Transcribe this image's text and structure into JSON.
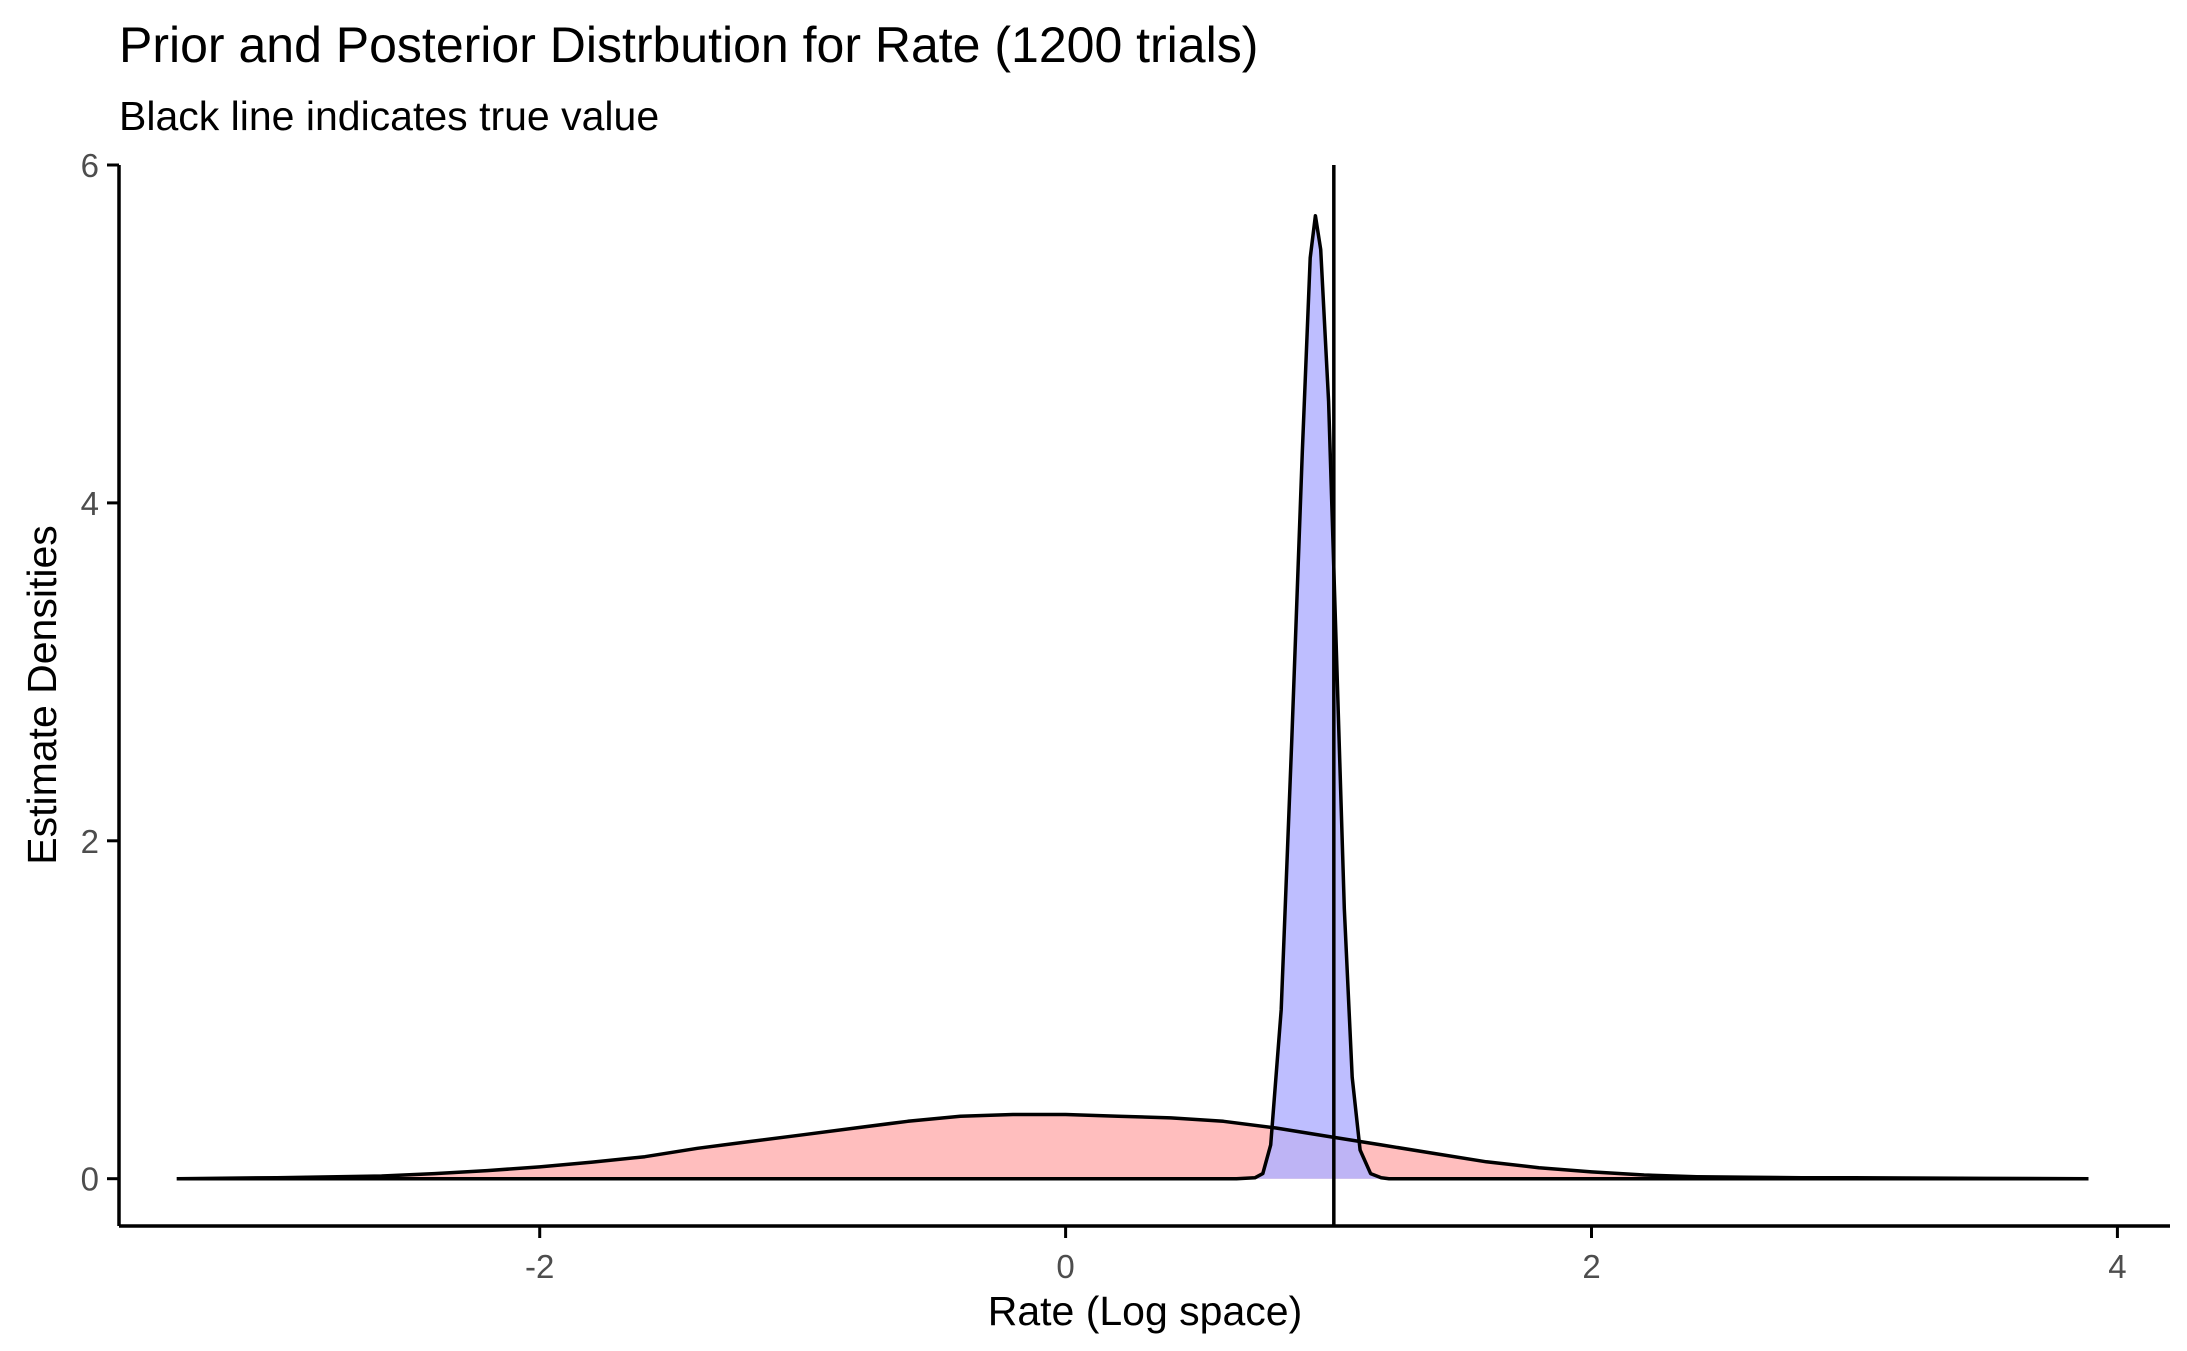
{
  "chart_data": {
    "type": "area",
    "title": "Prior and Posterior Distrbution for Rate (1200 trials)",
    "subtitle": "Black line indicates true value",
    "xlabel": "Rate (Log space)",
    "ylabel": "Estimate Densities",
    "xlim": [
      -3.6,
      4.2
    ],
    "ylim": [
      -0.28,
      6.0
    ],
    "xticks": [
      -2,
      0,
      2,
      4
    ],
    "yticks": [
      0,
      2,
      4,
      6
    ],
    "true_value": 1.02,
    "grid": false,
    "legend": "none",
    "series": [
      {
        "fill": "#ffb3b3",
        "x": [
          -3.38,
          -3.0,
          -2.6,
          -2.4,
          -2.2,
          -2.0,
          -1.8,
          -1.6,
          -1.4,
          -1.2,
          -1.0,
          -0.8,
          -0.6,
          -0.4,
          -0.2,
          0.0,
          0.2,
          0.4,
          0.6,
          0.8,
          1.0,
          1.2,
          1.4,
          1.6,
          1.8,
          2.0,
          2.2,
          2.4,
          2.6,
          2.8,
          3.0,
          3.2,
          3.5,
          3.89
        ],
        "values": [
          0.0,
          0.006,
          0.016,
          0.03,
          0.048,
          0.07,
          0.098,
          0.13,
          0.18,
          0.22,
          0.26,
          0.3,
          0.34,
          0.37,
          0.38,
          0.38,
          0.37,
          0.36,
          0.34,
          0.3,
          0.25,
          0.2,
          0.15,
          0.1,
          0.065,
          0.04,
          0.022,
          0.012,
          0.008,
          0.006,
          0.005,
          0.004,
          0.002,
          0.0
        ]
      },
      {
        "fill": "#b3b3ff",
        "x": [
          -3.38,
          0.65,
          0.72,
          0.75,
          0.78,
          0.82,
          0.86,
          0.9,
          0.93,
          0.95,
          0.97,
          1.0,
          1.03,
          1.06,
          1.09,
          1.12,
          1.16,
          1.2,
          1.23,
          3.89
        ],
        "values": [
          0.0,
          0.0,
          0.005,
          0.03,
          0.2,
          1.0,
          2.6,
          4.3,
          5.45,
          5.7,
          5.5,
          4.6,
          3.1,
          1.6,
          0.6,
          0.17,
          0.03,
          0.005,
          0.0,
          0.0
        ]
      }
    ]
  }
}
